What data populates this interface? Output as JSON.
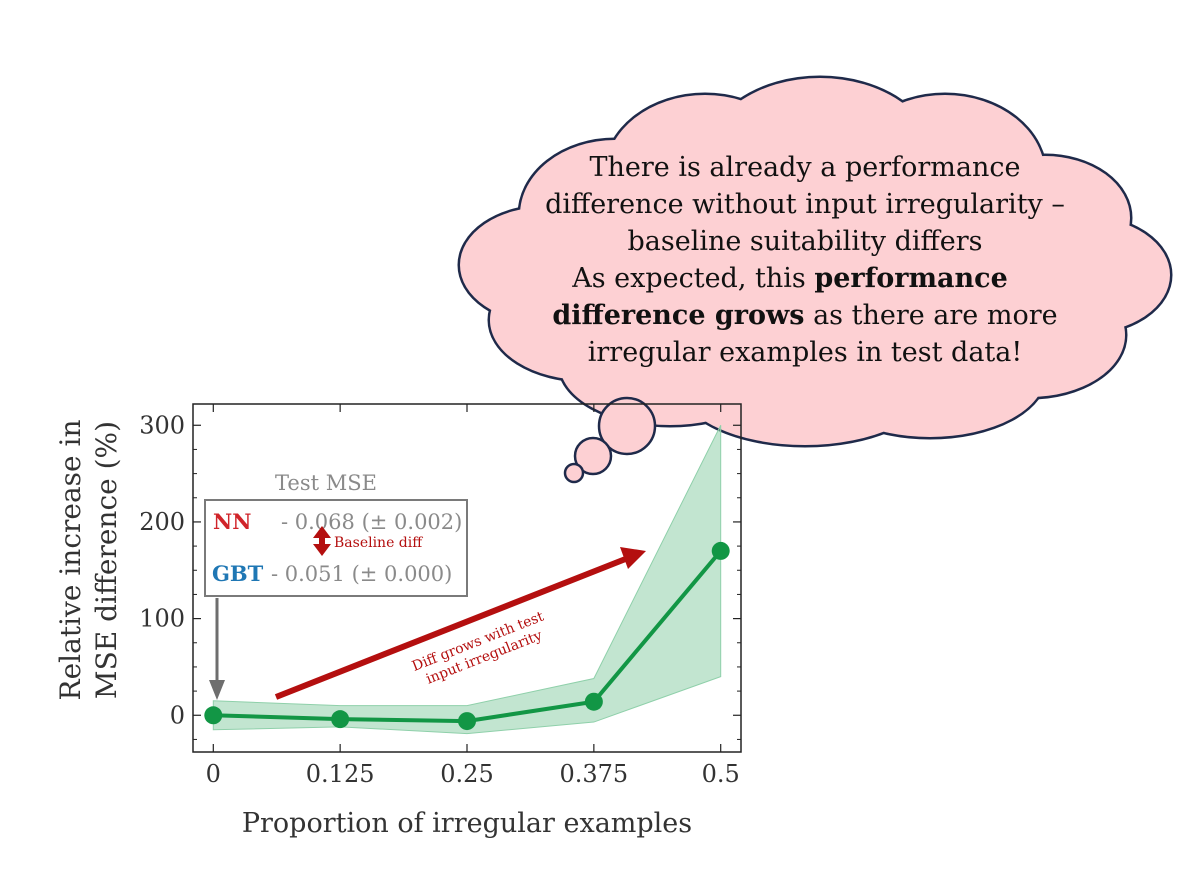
{
  "thought_bubble": {
    "lines": [
      "There is already a performance",
      "difference without input irregularity –",
      "baseline suitability differs",
      "As expected, this",
      "performance",
      "difference grows",
      "as there are more",
      "irregular examples in test data!"
    ],
    "fill_color": "#fdd0d3",
    "stroke_color": "#1f2a4a"
  },
  "legend_box": {
    "title": "Test MSE",
    "nn_label": "NN",
    "nn_value": "- 0.068 (± 0.002)",
    "gbt_label": "GBT",
    "gbt_value": "- 0.051 (± 0.000)",
    "baseline_note": "Baseline diff",
    "nn_color": "#d0242a",
    "gbt_color": "#1f77b4"
  },
  "annotations": {
    "trend_line1": "Diff grows with test",
    "trend_line2": "input irregularity",
    "arrow_color": "#b40f0f"
  },
  "chart_data": {
    "type": "line",
    "title": "",
    "xlabel": "Proportion of irregular examples",
    "ylabel_line1": "Relative increase in",
    "ylabel_line2": "MSE difference (%)",
    "x": [
      0,
      0.125,
      0.25,
      0.375,
      0.5
    ],
    "x_tick_labels": [
      "0",
      "0.125",
      "0.25",
      "0.375",
      "0.5"
    ],
    "y_ticks": [
      0,
      100,
      200,
      300
    ],
    "y_tick_labels": [
      "0",
      "100",
      "200",
      "300"
    ],
    "xlim": [
      -0.02,
      0.52
    ],
    "ylim": [
      -38,
      322
    ],
    "series": [
      {
        "values": [
          0,
          -4,
          -6,
          14,
          170
        ],
        "lower": [
          -15,
          -12,
          -19,
          -7,
          40
        ],
        "upper": [
          15,
          10,
          10,
          38,
          300
        ],
        "color": "#129645",
        "band_color": "#8fd0aa"
      }
    ],
    "grid": false
  }
}
